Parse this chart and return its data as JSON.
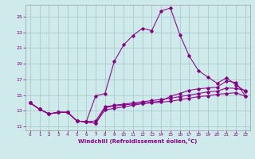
{
  "xlabel": "Windchill (Refroidissement éolien,°C)",
  "bg_color": "#ceeaea",
  "grid_color": "#aacccc",
  "line_color": "#880088",
  "xlim": [
    -0.5,
    23.5
  ],
  "ylim": [
    10.5,
    26.5
  ],
  "xticks": [
    0,
    1,
    2,
    3,
    4,
    5,
    6,
    7,
    8,
    9,
    10,
    11,
    12,
    13,
    14,
    15,
    16,
    17,
    18,
    19,
    20,
    21,
    22,
    23
  ],
  "yticks": [
    11,
    13,
    15,
    17,
    19,
    21,
    23,
    25
  ],
  "series": [
    [
      14.0,
      13.2,
      12.6,
      12.8,
      12.8,
      11.7,
      11.6,
      11.4,
      13.1,
      13.3,
      13.5,
      13.7,
      13.9,
      14.0,
      14.1,
      14.2,
      14.4,
      14.6,
      14.8,
      14.9,
      15.1,
      15.2,
      15.3,
      14.85
    ],
    [
      14.0,
      13.2,
      12.6,
      12.8,
      12.8,
      11.7,
      11.6,
      11.7,
      13.5,
      13.7,
      13.85,
      14.0,
      14.15,
      14.3,
      14.45,
      14.6,
      14.8,
      15.0,
      15.2,
      15.4,
      15.5,
      15.9,
      15.85,
      15.6
    ],
    [
      14.0,
      13.2,
      12.6,
      12.8,
      12.8,
      11.7,
      11.6,
      14.9,
      15.2,
      19.3,
      21.4,
      22.6,
      23.5,
      23.2,
      25.7,
      26.1,
      22.7,
      20.0,
      18.1,
      17.3,
      16.5,
      17.2,
      16.3,
      15.5
    ],
    [
      14.0,
      13.2,
      12.6,
      12.8,
      12.8,
      11.7,
      11.6,
      11.4,
      13.4,
      13.6,
      13.75,
      13.85,
      13.98,
      14.1,
      14.22,
      14.85,
      15.2,
      15.6,
      15.8,
      15.9,
      16.0,
      16.8,
      16.6,
      14.9
    ]
  ]
}
